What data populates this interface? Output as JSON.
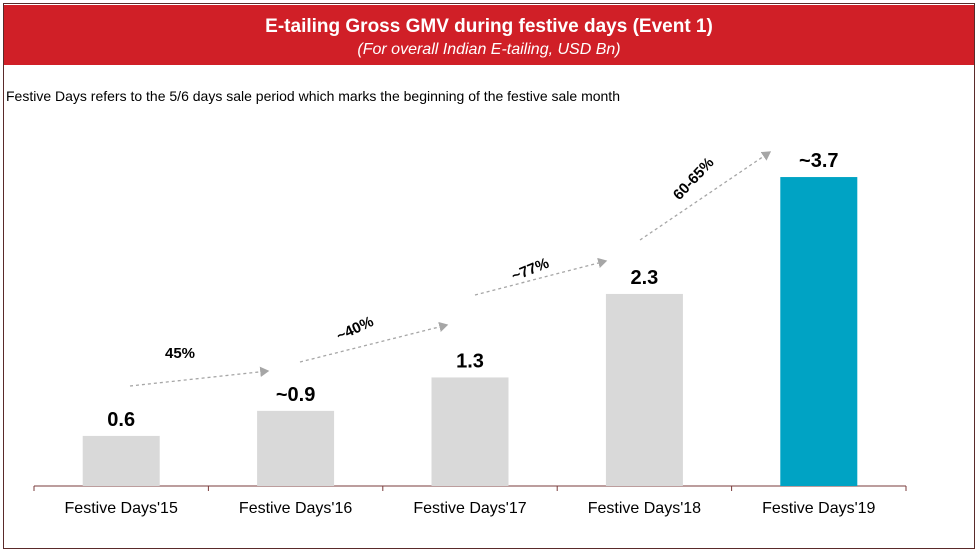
{
  "chart_data": {
    "type": "bar",
    "title": "E-tailing Gross GMV during festive days (Event 1)",
    "subtitle": "(For overall Indian E-tailing, USD Bn)",
    "note": "Festive Days refers to the 5/6 days sale period which marks the beginning of the festive sale month",
    "categories": [
      "Festive Days'15",
      "Festive Days'16",
      "Festive Days'17",
      "Festive Days'18",
      "Festive Days'19"
    ],
    "values": [
      0.6,
      0.9,
      1.3,
      2.3,
      3.7
    ],
    "data_labels": [
      "0.6",
      "~0.9",
      "1.3",
      "2.3",
      "~3.7"
    ],
    "growth_labels": [
      "45%",
      "~40%",
      "~77%",
      "60-65%"
    ],
    "bar_colors": [
      "#d9d9d9",
      "#d9d9d9",
      "#d9d9d9",
      "#d9d9d9",
      "#00a3c4"
    ],
    "header_color": "#d01f27",
    "xlabel": "",
    "ylabel": "",
    "ylim": [
      0,
      4.1
    ],
    "grid": false
  }
}
